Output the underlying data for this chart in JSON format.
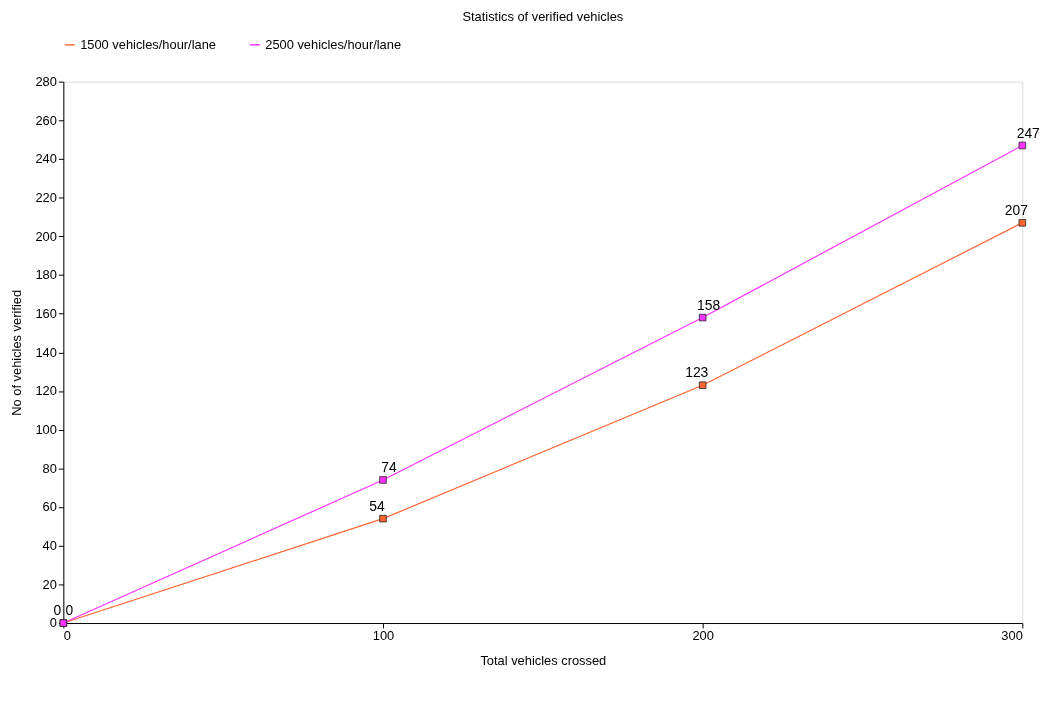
{
  "chart_data": {
    "type": "line",
    "title": "Statistics of verified vehicles",
    "xlabel": "Total vehicles crossed",
    "ylabel": "No of vehicles verified",
    "x": [
      0,
      100,
      200,
      300
    ],
    "series": [
      {
        "name": "1500 vehicles/hour/lane",
        "color": "#ff6633",
        "values": [
          0,
          54,
          123,
          207
        ]
      },
      {
        "name": "2500 vehicles/hour/lane",
        "color": "#ff33ff",
        "values": [
          0,
          74,
          158,
          247
        ]
      }
    ],
    "xlim": [
      0,
      300
    ],
    "xticks": [
      0,
      100,
      200,
      300
    ],
    "ylim": [
      0,
      280
    ],
    "yticks": [
      0,
      20,
      40,
      60,
      80,
      100,
      120,
      140,
      160,
      180,
      200,
      220,
      240,
      260,
      280
    ],
    "grid": false,
    "legend": "top left",
    "marker": "square",
    "line_style": "solid",
    "data_labels": true
  }
}
